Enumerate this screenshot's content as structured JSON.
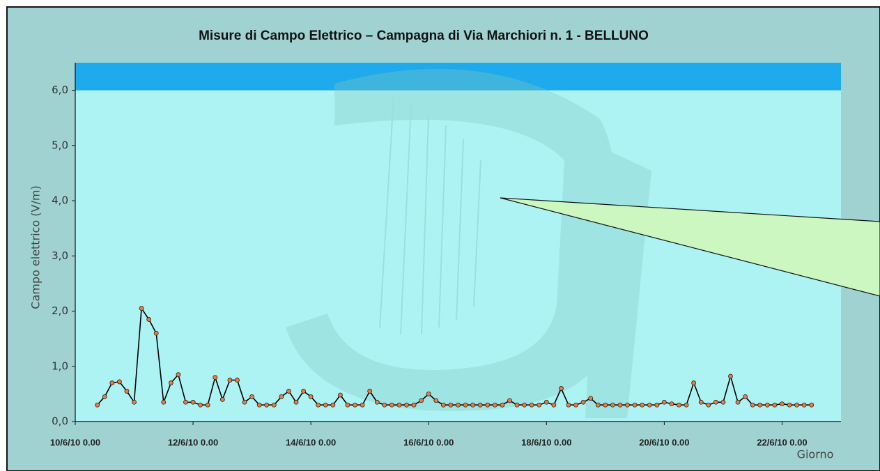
{
  "chart_data": {
    "type": "line",
    "title": "Misure di Campo Elettrico – Campagna di Via Marchiori n. 1 - BELLUNO",
    "y_label": "Campo elettrico (V/m)",
    "x_label": "Giorno",
    "xlim": [
      10,
      23
    ],
    "xticks": [
      {
        "value": 10,
        "label": "10/6/10 0.00"
      },
      {
        "value": 12,
        "label": "12/6/10 0.00"
      },
      {
        "value": 14,
        "label": "14/6/10 0.00"
      },
      {
        "value": 16,
        "label": "16/6/10 0.00"
      },
      {
        "value": 18,
        "label": "18/6/10 0.00"
      },
      {
        "value": 20,
        "label": "20/6/10 0.00"
      },
      {
        "value": 22,
        "label": "22/6/10 0.00"
      }
    ],
    "ylim": [
      0,
      6.5
    ],
    "yticks": [
      {
        "value": 0,
        "label": "0,0"
      },
      {
        "value": 1,
        "label": "1,0"
      },
      {
        "value": 2,
        "label": "2,0"
      },
      {
        "value": 3,
        "label": "3,0"
      },
      {
        "value": 4,
        "label": "4,0"
      },
      {
        "value": 5,
        "label": "5,0"
      },
      {
        "value": 6,
        "label": "6,0"
      }
    ],
    "band": {
      "from": 6,
      "to": 6.5,
      "color": "#1eaaec"
    },
    "line_color": "#000000",
    "marker_color": "#f07a3c",
    "x": [
      10.375,
      10.5,
      10.625,
      10.75,
      10.875,
      11,
      11.125,
      11.25,
      11.375,
      11.5,
      11.625,
      11.75,
      11.875,
      12,
      12.125,
      12.25,
      12.375,
      12.5,
      12.625,
      12.75,
      12.875,
      13,
      13.125,
      13.25,
      13.375,
      13.5,
      13.625,
      13.75,
      13.875,
      14,
      14.125,
      14.25,
      14.375,
      14.5,
      14.625,
      14.75,
      14.875,
      15,
      15.125,
      15.25,
      15.375,
      15.5,
      15.625,
      15.75,
      15.875,
      16,
      16.125,
      16.25,
      16.375,
      16.5,
      16.625,
      16.75,
      16.875,
      17,
      17.125,
      17.25,
      17.375,
      17.5,
      17.625,
      17.75,
      17.875,
      18,
      18.125,
      18.25,
      18.375,
      18.5,
      18.625,
      18.75,
      18.875,
      19,
      19.125,
      19.25,
      19.375,
      19.5,
      19.625,
      19.75,
      19.875,
      20,
      20.125,
      20.25,
      20.375,
      20.5,
      20.625,
      20.75,
      20.875,
      21,
      21.125,
      21.25,
      21.375,
      21.5,
      21.625,
      21.75,
      21.875,
      22,
      22.125,
      22.25,
      22.375,
      22.5
    ],
    "values": [
      0.3,
      0.45,
      0.7,
      0.72,
      0.55,
      0.35,
      2.05,
      1.85,
      1.6,
      0.35,
      0.7,
      0.85,
      0.35,
      0.35,
      0.3,
      0.3,
      0.8,
      0.4,
      0.75,
      0.75,
      0.35,
      0.45,
      0.3,
      0.3,
      0.3,
      0.45,
      0.55,
      0.35,
      0.55,
      0.45,
      0.3,
      0.3,
      0.3,
      0.48,
      0.3,
      0.3,
      0.3,
      0.55,
      0.35,
      0.3,
      0.3,
      0.3,
      0.3,
      0.3,
      0.38,
      0.5,
      0.38,
      0.3,
      0.3,
      0.3,
      0.3,
      0.3,
      0.3,
      0.3,
      0.3,
      0.3,
      0.38,
      0.3,
      0.3,
      0.3,
      0.3,
      0.35,
      0.3,
      0.6,
      0.3,
      0.3,
      0.35,
      0.42,
      0.3,
      0.3,
      0.3,
      0.3,
      0.3,
      0.3,
      0.3,
      0.3,
      0.3,
      0.35,
      0.32,
      0.3,
      0.3,
      0.7,
      0.35,
      0.3,
      0.35,
      0.35,
      0.82,
      0.35,
      0.45,
      0.3,
      0.3,
      0.3,
      0.3,
      0.32,
      0.3,
      0.3,
      0.3,
      0.3
    ]
  }
}
